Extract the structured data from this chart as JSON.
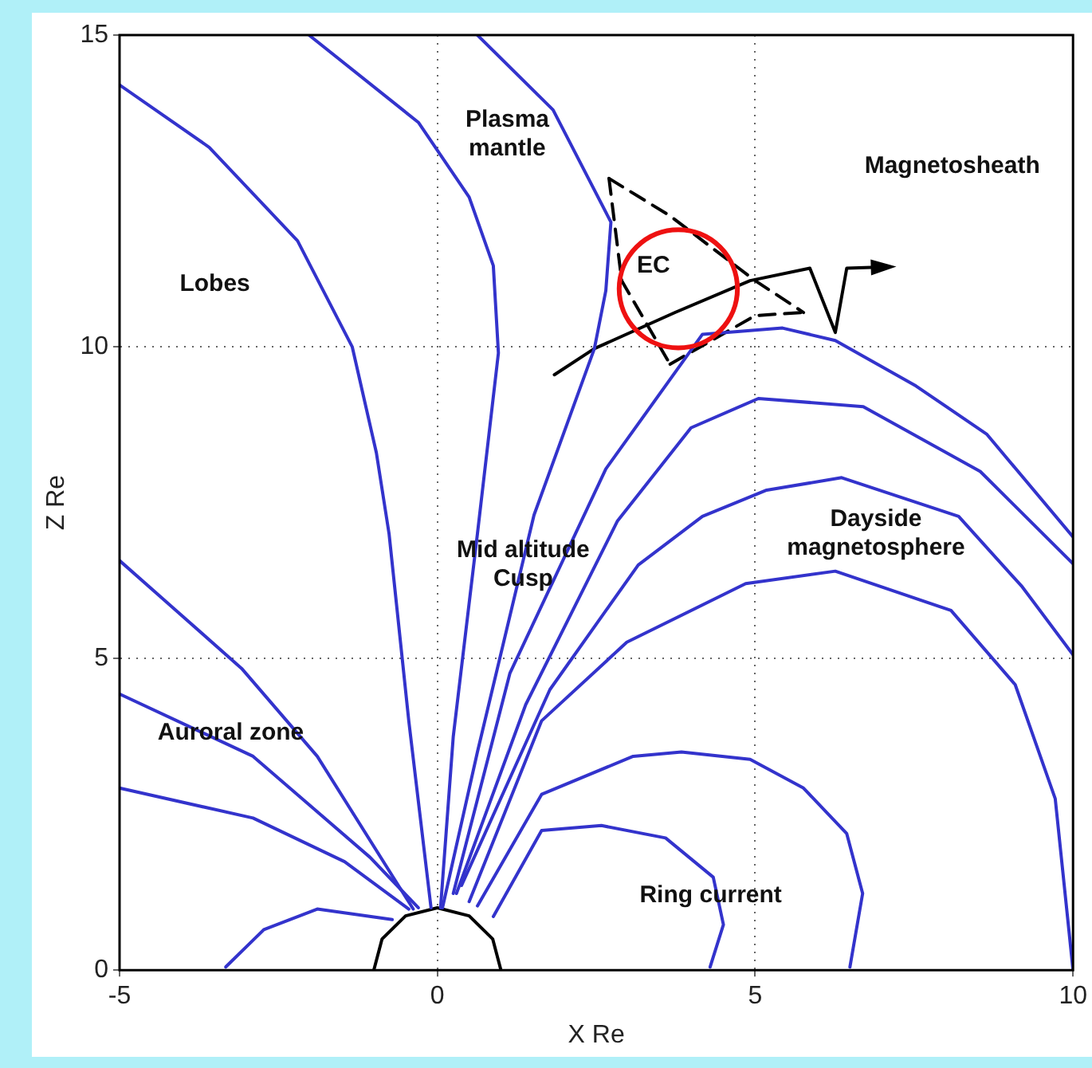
{
  "chart_data": {
    "type": "line",
    "xlabel": "X Re",
    "ylabel": "Z Re",
    "xlim": [
      -5,
      10
    ],
    "ylim": [
      0,
      15
    ],
    "xticks": [
      -5,
      0,
      5,
      10
    ],
    "yticks": [
      0,
      5,
      10,
      15
    ],
    "grid": true,
    "legend": false,
    "series": [
      {
        "color": "#3333cc",
        "x": [
          -5,
          -3.59,
          -2.2,
          -1.34,
          -0.96,
          -0.76,
          -0.45,
          -0.1
        ],
        "values": [
          14.2,
          13.2,
          11.7,
          10.0,
          8.3,
          7.0,
          4.0,
          1.0
        ]
      },
      {
        "color": "#3333cc",
        "x": [
          -2.02,
          -0.3,
          0.5,
          0.88,
          0.96,
          0.63,
          0.25,
          0.05
        ],
        "values": [
          15.0,
          13.6,
          12.4,
          11.3,
          9.9,
          7.0,
          3.75,
          1.0
        ]
      },
      {
        "color": "#3333cc",
        "x": [
          0.63,
          1.82,
          2.73,
          2.65,
          2.47,
          1.52,
          0.63,
          0.08
        ],
        "values": [
          15.0,
          13.8,
          12.0,
          10.9,
          9.97,
          7.3,
          3.5,
          1.0
        ]
      },
      {
        "color": "#3333cc",
        "x": [
          0.25,
          1.14,
          2.65,
          4.17,
          5.43,
          6.26,
          7.53,
          8.64,
          10.0
        ],
        "values": [
          1.23,
          4.76,
          8.04,
          10.2,
          10.3,
          10.1,
          9.37,
          8.6,
          6.95
        ]
      },
      {
        "color": "#3333cc",
        "x": [
          0.3,
          1.39,
          2.83,
          3.99,
          5.05,
          6.7,
          8.54,
          10.0
        ],
        "values": [
          1.23,
          4.26,
          7.2,
          8.7,
          9.17,
          9.04,
          8.0,
          6.52
        ]
      },
      {
        "color": "#3333cc",
        "x": [
          0.38,
          1.77,
          3.16,
          4.17,
          5.18,
          6.36,
          8.2,
          9.2,
          10.0
        ],
        "values": [
          1.36,
          4.5,
          6.5,
          7.28,
          7.7,
          7.9,
          7.28,
          6.15,
          5.06
        ]
      },
      {
        "color": "#3333cc",
        "x": [
          0.5,
          1.64,
          2.98,
          4.85,
          6.26,
          8.08,
          9.09,
          9.72,
          10.0
        ],
        "values": [
          1.1,
          4.0,
          5.26,
          6.2,
          6.4,
          5.77,
          4.58,
          2.75,
          0
        ]
      },
      {
        "color": "#3333cc",
        "x": [
          0.63,
          1.64,
          3.08,
          3.84,
          4.92,
          5.76,
          6.44,
          6.69,
          6.49
        ],
        "values": [
          1.03,
          2.82,
          3.43,
          3.5,
          3.38,
          2.92,
          2.19,
          1.23,
          0.05
        ]
      },
      {
        "color": "#3333cc",
        "x": [
          0.88,
          1.64,
          2.58,
          3.59,
          4.34,
          4.5,
          4.29
        ],
        "values": [
          0.86,
          2.24,
          2.32,
          2.12,
          1.49,
          0.73,
          0.05
        ]
      },
      {
        "color": "#3333cc",
        "x": [
          -5,
          -3.08,
          -1.89,
          -0.38
        ],
        "values": [
          6.57,
          4.84,
          3.43,
          0.98
        ]
      },
      {
        "color": "#3333cc",
        "x": [
          -5,
          -2.9,
          -1.06,
          -0.3
        ],
        "values": [
          4.43,
          3.43,
          1.81,
          1.0
        ]
      },
      {
        "color": "#3333cc",
        "x": [
          -5,
          -2.9,
          -1.46,
          -0.45
        ],
        "values": [
          2.92,
          2.44,
          1.74,
          0.98
        ]
      },
      {
        "color": "#3333cc",
        "x": [
          -3.33,
          -2.73,
          -1.89,
          -0.71
        ],
        "values": [
          0.05,
          0.65,
          0.98,
          0.81
        ]
      },
      {
        "color": "#000000",
        "x": [
          -1,
          -0.87,
          -0.5,
          0,
          0.5,
          0.87,
          1
        ],
        "values": [
          0,
          0.5,
          0.87,
          1,
          0.87,
          0.5,
          0
        ]
      },
      {
        "color": "#000000",
        "line_style": "dashed",
        "x": [
          2.7,
          3.66,
          5.0,
          5.76
        ],
        "values": [
          12.7,
          12.1,
          11.06,
          10.55
        ]
      },
      {
        "color": "#000000",
        "line_style": "dashed",
        "x": [
          3.66,
          5.0,
          5.76
        ],
        "values": [
          9.72,
          10.5,
          10.55
        ]
      },
      {
        "color": "#000000",
        "line_style": "dashed",
        "x": [
          2.7,
          2.9,
          3.66
        ],
        "values": [
          12.7,
          11.06,
          9.72
        ]
      },
      {
        "color": "#000000",
        "x": [
          1.84,
          2.47,
          3.74,
          4.92,
          5.86,
          6.26,
          6.44,
          7.02
        ],
        "values": [
          9.55,
          9.97,
          10.55,
          11.06,
          11.26,
          10.23,
          11.26,
          11.28
        ]
      }
    ],
    "annotations": [
      "Plasma\nmantle",
      "Magnetosheath",
      "Lobes",
      "Mid altitude\nCusp",
      "Dayside\nmagnetosphere",
      "Auroral zone",
      "Ring current",
      "EC"
    ]
  }
}
